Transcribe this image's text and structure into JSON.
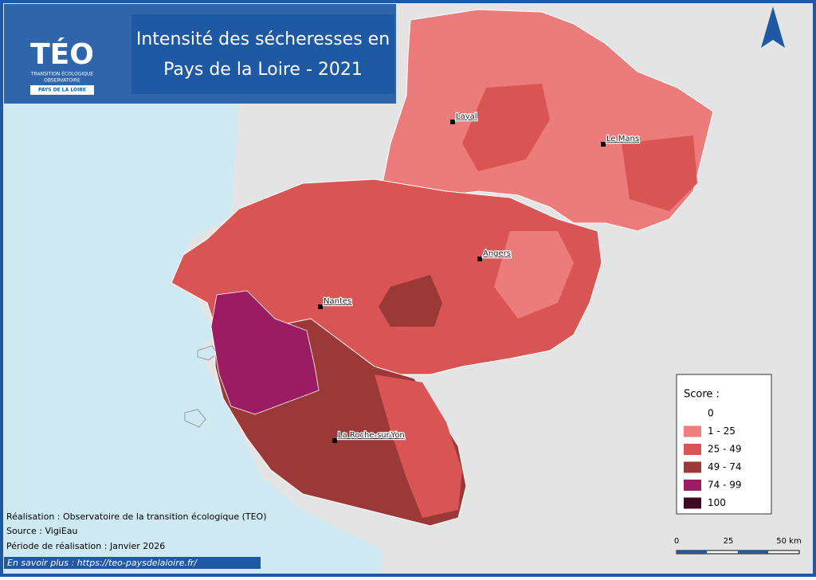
{
  "header": {
    "logo": {
      "name": "TÉO",
      "subtitle_1": "TRANSITION ÉCOLOGIQUE",
      "subtitle_2": "OBSERVATOIRE",
      "region": "PAYS DE LA LOIRE"
    },
    "title_lines": [
      "Intensité des sécheresses en",
      "Pays de la Loire - 2021"
    ]
  },
  "cities": [
    {
      "name": "Laval"
    },
    {
      "name": "Le Mans"
    },
    {
      "name": "Angers"
    },
    {
      "name": "Nantes"
    },
    {
      "name": "La Roche-sur-Yon"
    }
  ],
  "legend": {
    "title": "Score :",
    "items": [
      {
        "label": "0",
        "color": "#ffffff"
      },
      {
        "label": "1 - 25",
        "color": "#ee7f7f"
      },
      {
        "label": "25 - 49",
        "color": "#d95553"
      },
      {
        "label": "49 - 74",
        "color": "#9b3838"
      },
      {
        "label": "74 - 99",
        "color": "#9c1c63"
      },
      {
        "label": "100",
        "color": "#3e0a24"
      }
    ]
  },
  "scale_bar": {
    "labels": [
      "0",
      "25",
      "50 km"
    ]
  },
  "credits": [
    "Réalisation : Observatoire de la transition écologique (TEO)",
    "Source : VigiEau",
    "Période de réalisation : Janvier 2026"
  ],
  "footer": {
    "link_text": "En savoir plus : https://teo-paysdelaloire.fr/"
  }
}
